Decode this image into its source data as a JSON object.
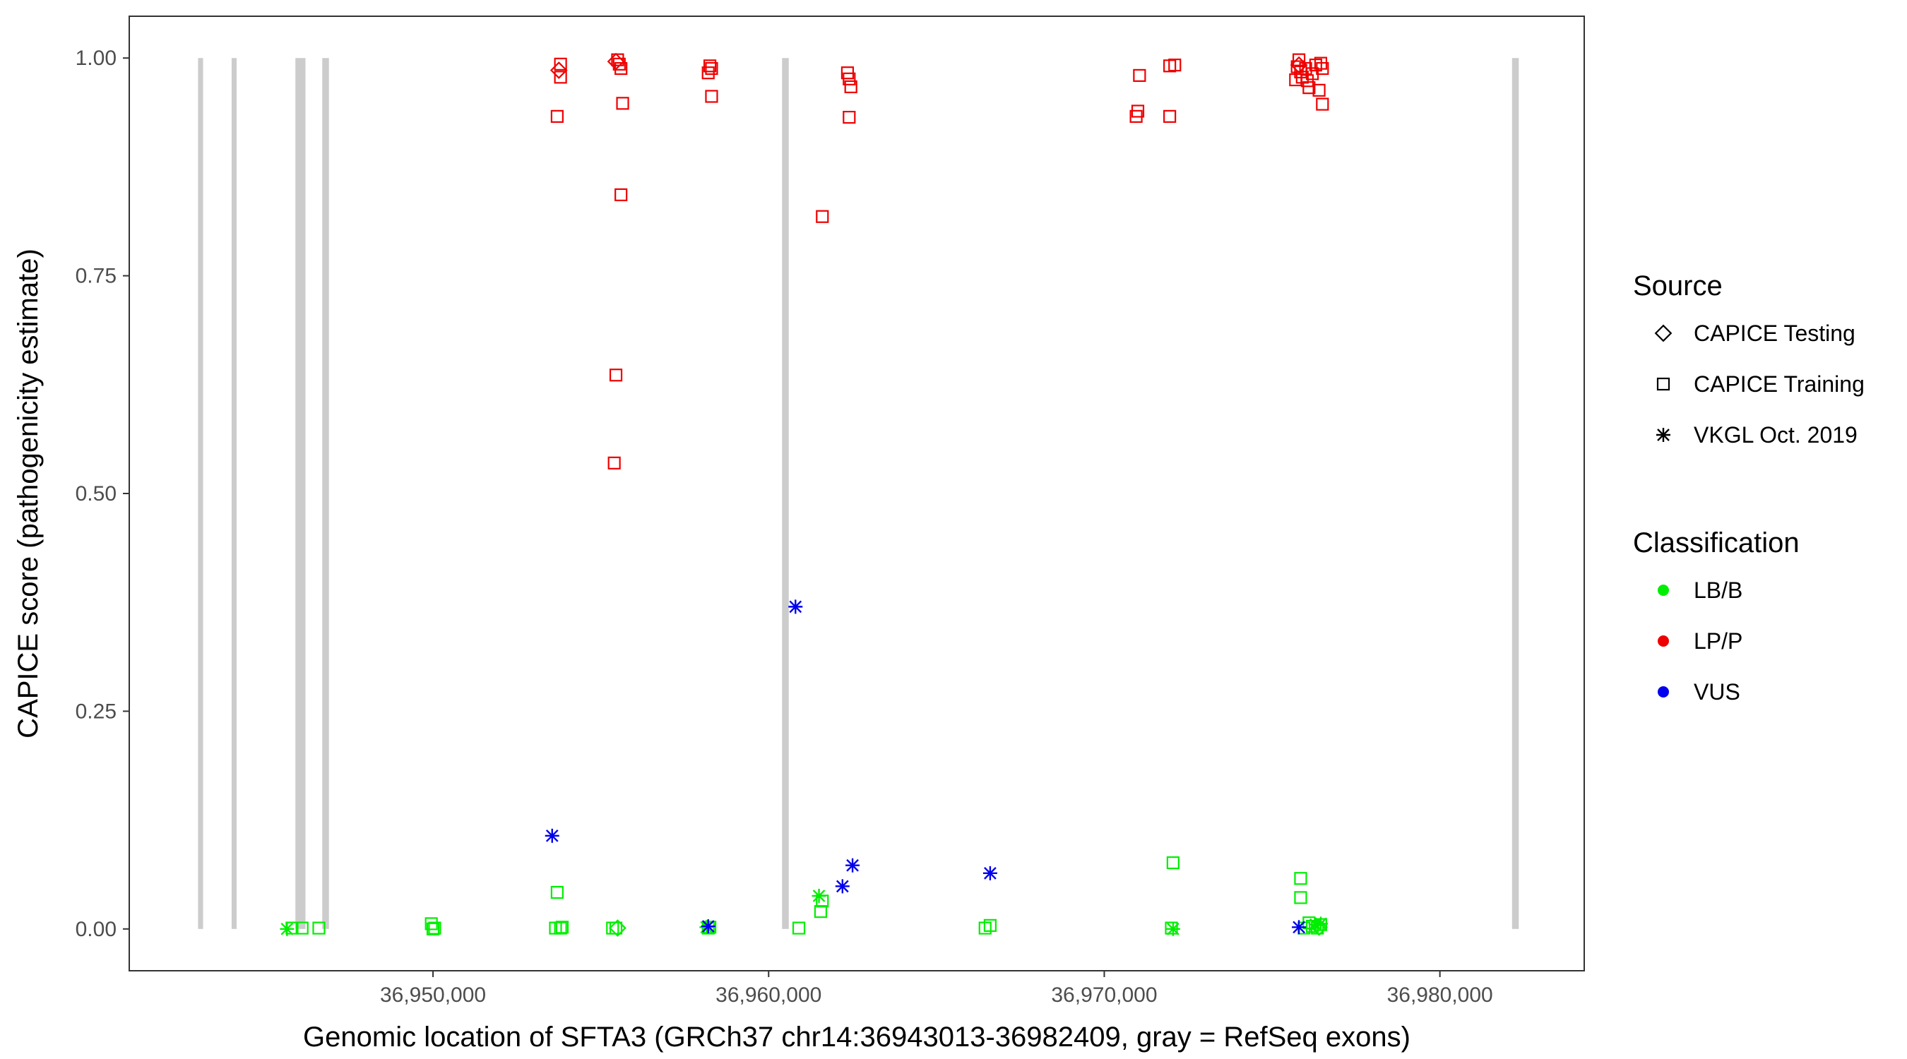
{
  "chart_data": {
    "type": "scatter",
    "title": "",
    "xlabel": "Genomic location of SFTA3 (GRCh37 chr14:36943013-36982409, gray = RefSeq exons)",
    "ylabel": "CAPICE score (pathogenicity estimate)",
    "xlim": [
      36940950,
      36984300
    ],
    "ylim": [
      -0.048,
      1.048
    ],
    "x_ticks": [
      36950000,
      36960000,
      36970000,
      36980000
    ],
    "x_tick_labels": [
      "36,950,000",
      "36,960,000",
      "36,970,000",
      "36,980,000"
    ],
    "y_ticks": [
      0,
      0.25,
      0.5,
      0.75,
      1.0
    ],
    "y_tick_labels": [
      "0.00",
      "0.25",
      "0.50",
      "0.75",
      "1.00"
    ],
    "grid": false,
    "exons": [
      {
        "start": 36943000,
        "end": 36943150
      },
      {
        "start": 36944000,
        "end": 36944150
      },
      {
        "start": 36945900,
        "end": 36946200
      },
      {
        "start": 36946700,
        "end": 36946900
      },
      {
        "start": 36960400,
        "end": 36960600
      },
      {
        "start": 36982150,
        "end": 36982350
      }
    ],
    "legend": {
      "position": "right",
      "source_title": "Source",
      "source_entries": [
        {
          "label": "CAPICE Testing",
          "shape": "diamond"
        },
        {
          "label": "CAPICE Training",
          "shape": "square"
        },
        {
          "label": "VKGL Oct. 2019",
          "shape": "asterisk"
        }
      ],
      "class_title": "Classification",
      "class_entries": [
        {
          "label": "LB/B",
          "color": "#00ee00"
        },
        {
          "label": "LP/P",
          "color": "#ee0000"
        },
        {
          "label": "VUS",
          "color": "#0000ee"
        }
      ]
    },
    "colors": {
      "LB/B": "#00ee00",
      "LP/P": "#ee0000",
      "VUS": "#0000ee",
      "exon": "#cccccc"
    },
    "series": [
      {
        "name": "CAPICE Training / LP/P",
        "source": "CAPICE Training",
        "classification": "LP/P",
        "points": [
          [
            36953800,
            0.993
          ],
          [
            36953800,
            0.978
          ],
          [
            36953700,
            0.933
          ],
          [
            36955500,
            0.998
          ],
          [
            36955550,
            0.993
          ],
          [
            36955600,
            0.988
          ],
          [
            36955650,
            0.948
          ],
          [
            36955600,
            0.843
          ],
          [
            36955450,
            0.636
          ],
          [
            36955400,
            0.535
          ],
          [
            36958250,
            0.991
          ],
          [
            36958300,
            0.988
          ],
          [
            36958200,
            0.983
          ],
          [
            36958300,
            0.956
          ],
          [
            36961600,
            0.818
          ],
          [
            36962350,
            0.983
          ],
          [
            36962400,
            0.976
          ],
          [
            36962450,
            0.967
          ],
          [
            36962400,
            0.932
          ],
          [
            36971050,
            0.98
          ],
          [
            36971000,
            0.939
          ],
          [
            36970950,
            0.933
          ],
          [
            36971950,
            0.991
          ],
          [
            36972100,
            0.992
          ],
          [
            36971950,
            0.933
          ],
          [
            36975800,
            0.998
          ],
          [
            36975750,
            0.99
          ],
          [
            36975850,
            0.984
          ],
          [
            36975900,
            0.978
          ],
          [
            36976000,
            0.988
          ],
          [
            36976050,
            0.974
          ],
          [
            36976100,
            0.966
          ],
          [
            36976200,
            0.982
          ],
          [
            36976300,
            0.992
          ],
          [
            36976450,
            0.994
          ],
          [
            36976500,
            0.988
          ],
          [
            36976400,
            0.963
          ],
          [
            36976500,
            0.947
          ],
          [
            36975700,
            0.975
          ]
        ]
      },
      {
        "name": "CAPICE Testing / LP/P",
        "source": "CAPICE Testing",
        "classification": "LP/P",
        "points": [
          [
            36953750,
            0.986
          ],
          [
            36955450,
            0.996
          ],
          [
            36975800,
            0.992
          ]
        ]
      },
      {
        "name": "CAPICE Training / LB/B",
        "source": "CAPICE Training",
        "classification": "LB/B",
        "points": [
          [
            36945800,
            0.001
          ],
          [
            36946100,
            0.001
          ],
          [
            36946600,
            0.001
          ],
          [
            36949950,
            0.006
          ],
          [
            36950050,
            0.001
          ],
          [
            36950000,
            0.0
          ],
          [
            36953700,
            0.042
          ],
          [
            36953650,
            0.001
          ],
          [
            36953850,
            0.002
          ],
          [
            36953800,
            0.001
          ],
          [
            36955350,
            0.001
          ],
          [
            36955450,
            0.001
          ],
          [
            36958200,
            0.001
          ],
          [
            36958250,
            0.002
          ],
          [
            36960900,
            0.001
          ],
          [
            36961550,
            0.02
          ],
          [
            36961600,
            0.032
          ],
          [
            36966450,
            0.001
          ],
          [
            36966600,
            0.004
          ],
          [
            36972050,
            0.076
          ],
          [
            36972000,
            0.001
          ],
          [
            36975850,
            0.058
          ],
          [
            36975850,
            0.036
          ],
          [
            36975950,
            0.001
          ],
          [
            36976100,
            0.007
          ],
          [
            36976200,
            0.003
          ],
          [
            36976350,
            0.001
          ],
          [
            36976450,
            0.005
          ]
        ]
      },
      {
        "name": "CAPICE Testing / LB/B",
        "source": "CAPICE Testing",
        "classification": "LB/B",
        "points": [
          [
            36955500,
            0.001
          ],
          [
            36976400,
            0.002
          ]
        ]
      },
      {
        "name": "VKGL Oct. 2019 / LB/B",
        "source": "VKGL Oct. 2019",
        "classification": "LB/B",
        "points": [
          [
            36945650,
            0.0
          ],
          [
            36958150,
            0.002
          ],
          [
            36961500,
            0.038
          ],
          [
            36972050,
            0.0
          ],
          [
            36976300,
            0.005
          ],
          [
            36976450,
            0.006
          ]
        ]
      },
      {
        "name": "VKGL Oct. 2019 / VUS",
        "source": "VKGL Oct. 2019",
        "classification": "VUS",
        "points": [
          [
            36953550,
            0.107
          ],
          [
            36958200,
            0.003
          ],
          [
            36960800,
            0.37
          ],
          [
            36962200,
            0.049
          ],
          [
            36962500,
            0.073
          ],
          [
            36966600,
            0.064
          ],
          [
            36975800,
            0.002
          ]
        ]
      }
    ]
  }
}
